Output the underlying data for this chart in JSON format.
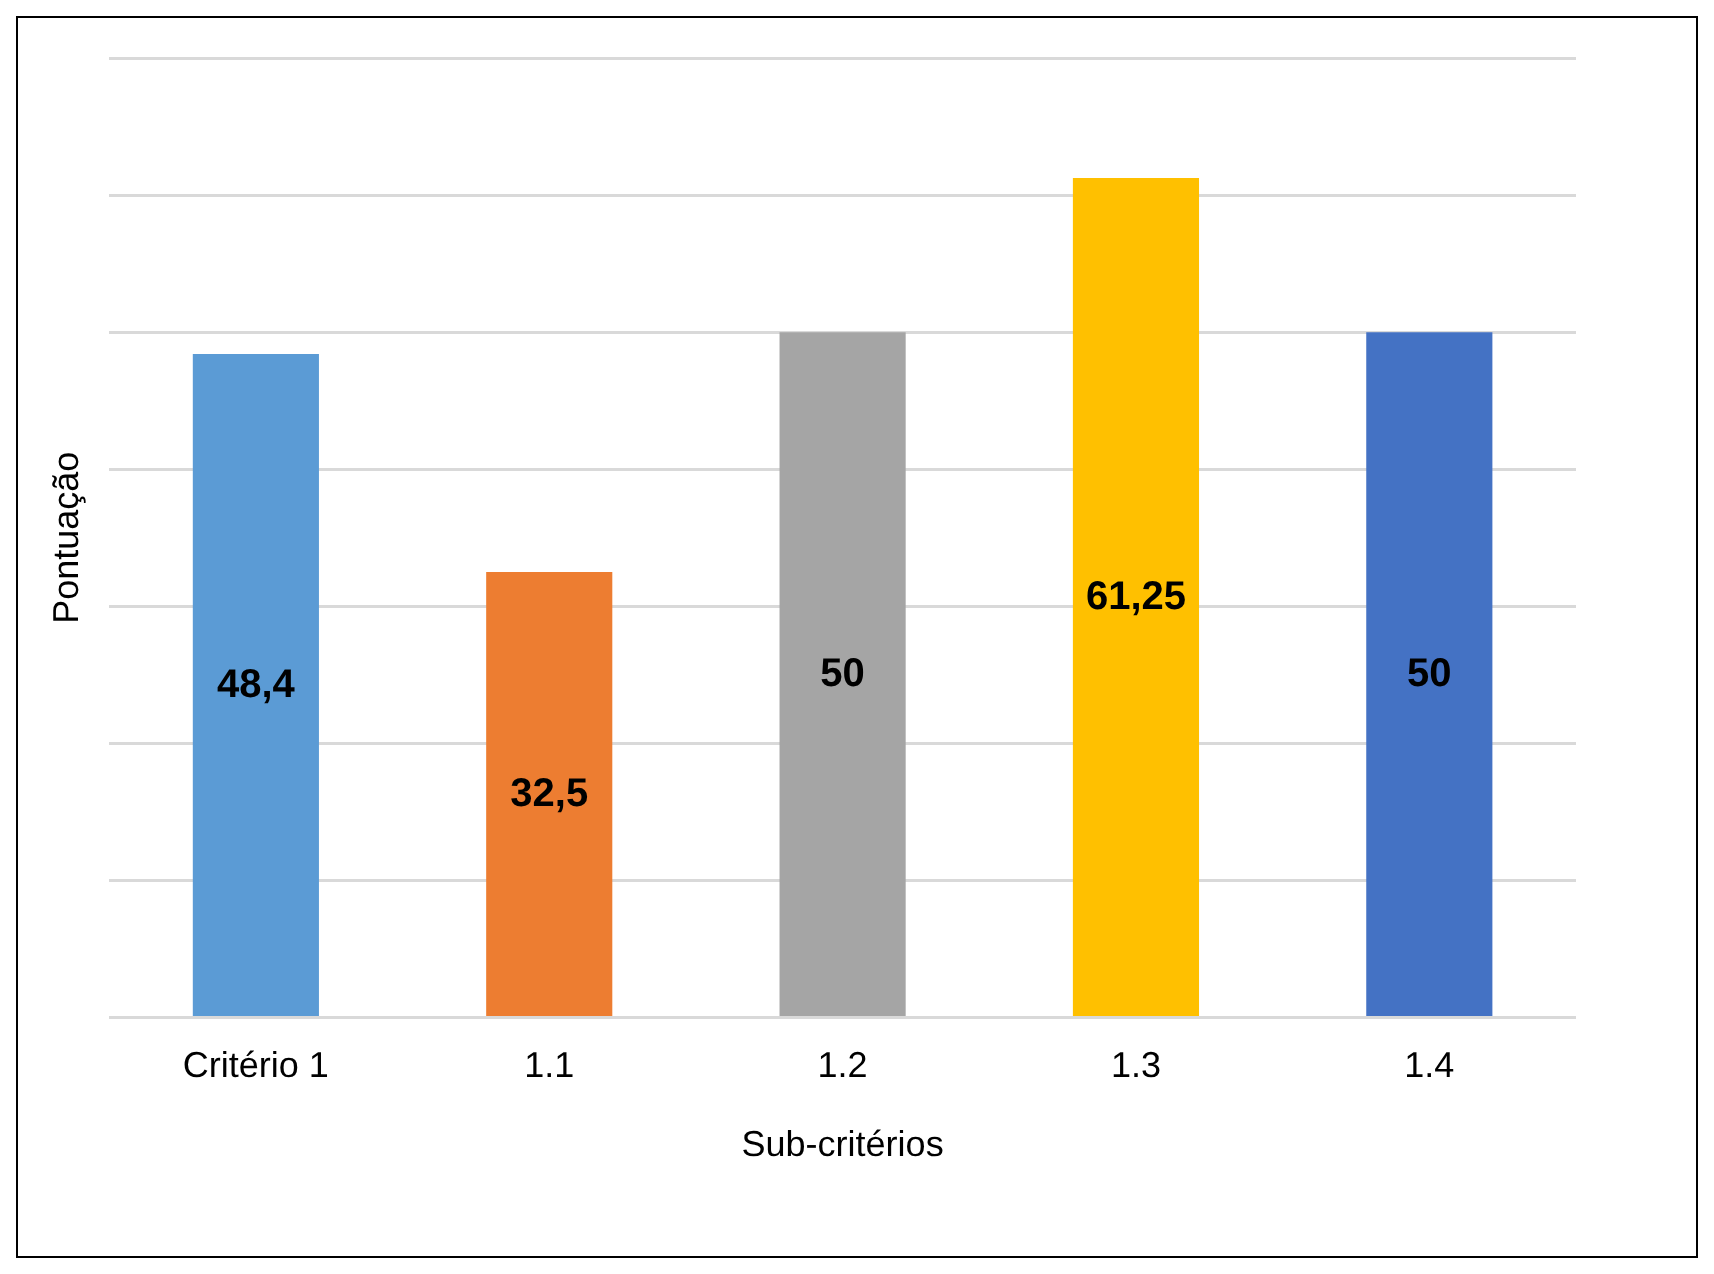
{
  "chart_data": {
    "type": "bar",
    "xlabel": "Sub-critérios",
    "ylabel": "Pontuação",
    "categories": [
      "Critério 1",
      "1.1",
      "1.2",
      "1.3",
      "1.4"
    ],
    "values": [
      48.4,
      32.5,
      50,
      61.25,
      50
    ],
    "colors": [
      "#5b9bd5",
      "#ed7d31",
      "#a5a5a5",
      "#ffc000",
      "#4472c4"
    ],
    "value_labels": [
      "48,4",
      "32,5",
      "50",
      "61,25",
      "50"
    ],
    "ylim": [
      0,
      70
    ],
    "yticks": [
      {
        "value": 0,
        "label": null
      },
      {
        "value": 10,
        "label": null
      },
      {
        "value": 20,
        "label": null
      },
      {
        "value": 30,
        "label": null
      },
      {
        "value": 40,
        "label": null
      },
      {
        "value": 50,
        "label": null
      },
      {
        "value": 60,
        "label": null
      },
      {
        "value": 70,
        "label": null
      }
    ],
    "grid": "y",
    "legend": false
  }
}
